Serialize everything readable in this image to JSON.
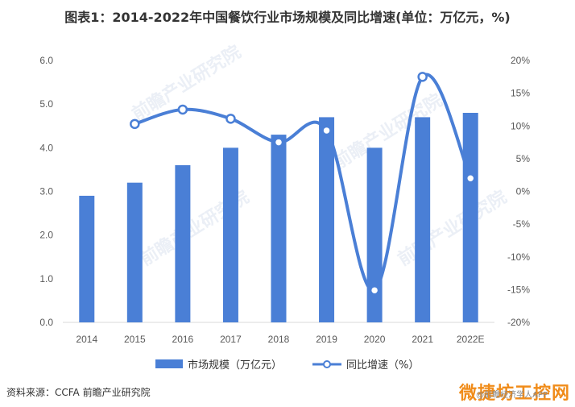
{
  "title": "图表1：2014-2022年中国餐饮行业市场规模及同比增速(单位：万亿元，%)",
  "source": "资料来源：CCFA 前瞻产业研究院",
  "watermark": "前瞻产业研究院",
  "brand_overlay": "微捷坊工控网",
  "brand_sub": "@前瞻经济学人APP",
  "colors": {
    "bar": "#4a7fd6",
    "line": "#4a7fd6",
    "axis": "#d9d9d9"
  },
  "chart_data": {
    "type": "bar",
    "categories": [
      "2014",
      "2015",
      "2016",
      "2017",
      "2018",
      "2019",
      "2020",
      "2021",
      "2022E"
    ],
    "series": [
      {
        "name": "市场规模（万亿元）",
        "type": "bar",
        "axis": "left",
        "values": [
          2.9,
          3.2,
          3.6,
          4.0,
          4.3,
          4.7,
          4.0,
          4.7,
          4.8
        ]
      },
      {
        "name": "同比增速（%）",
        "type": "line",
        "axis": "right",
        "values": [
          null,
          10.3,
          12.5,
          11.1,
          7.5,
          9.3,
          -15.1,
          17.5,
          2.0
        ]
      }
    ],
    "ylim_left": [
      0,
      6
    ],
    "yticks_left": [
      "0.0",
      "1.0",
      "2.0",
      "3.0",
      "4.0",
      "5.0",
      "6.0"
    ],
    "ylim_right": [
      -20,
      20
    ],
    "yticks_right": [
      "-20%",
      "-15%",
      "-10%",
      "-5%",
      "0%",
      "5%",
      "10%",
      "15%",
      "20%"
    ],
    "legend_position": "bottom",
    "grid": false
  }
}
